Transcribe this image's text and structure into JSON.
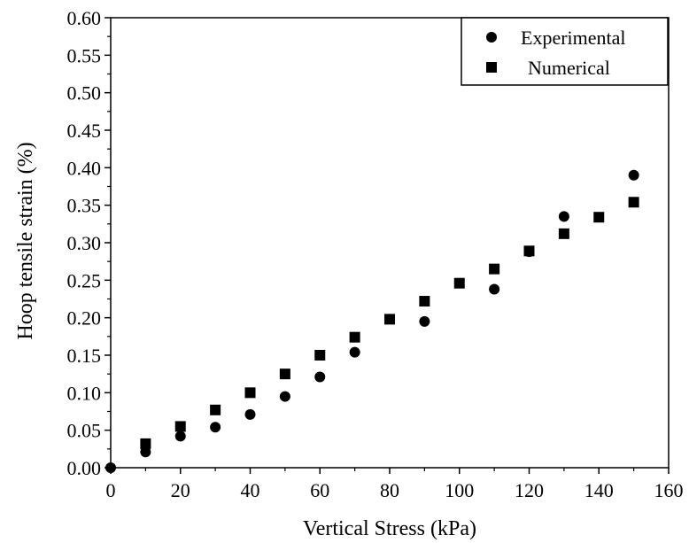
{
  "chart_data": {
    "type": "scatter",
    "title": "",
    "xlabel": "Vertical Stress (kPa)",
    "ylabel": "Hoop tensile strain (%)",
    "xlim": [
      0,
      160
    ],
    "ylim": [
      0,
      0.6
    ],
    "x_ticks": [
      "0",
      "20",
      "40",
      "60",
      "80",
      "100",
      "120",
      "140",
      "160"
    ],
    "y_ticks": [
      "0.00",
      "0.05",
      "0.10",
      "0.15",
      "0.20",
      "0.25",
      "0.30",
      "0.35",
      "0.40",
      "0.45",
      "0.50",
      "0.55",
      "0.60"
    ],
    "grid": false,
    "legend_position": "top-right",
    "series": [
      {
        "name": "Experimental",
        "marker": "circle",
        "color": "#000000",
        "points": [
          [
            0,
            0.0
          ],
          [
            10,
            0.021
          ],
          [
            20,
            0.042
          ],
          [
            30,
            0.054
          ],
          [
            40,
            0.071
          ],
          [
            50,
            0.095
          ],
          [
            60,
            0.121
          ],
          [
            70,
            0.154
          ],
          [
            90,
            0.195
          ],
          [
            110,
            0.238
          ],
          [
            120,
            0.288
          ],
          [
            130,
            0.335
          ],
          [
            150,
            0.39
          ]
        ]
      },
      {
        "name": "Numerical",
        "marker": "square",
        "color": "#000000",
        "points": [
          [
            10,
            0.032
          ],
          [
            20,
            0.055
          ],
          [
            30,
            0.077
          ],
          [
            40,
            0.1
          ],
          [
            50,
            0.125
          ],
          [
            60,
            0.15
          ],
          [
            70,
            0.174
          ],
          [
            80,
            0.198
          ],
          [
            90,
            0.222
          ],
          [
            100,
            0.246
          ],
          [
            110,
            0.265
          ],
          [
            120,
            0.289
          ],
          [
            130,
            0.312
          ],
          [
            140,
            0.334
          ],
          [
            150,
            0.354
          ]
        ]
      }
    ]
  }
}
